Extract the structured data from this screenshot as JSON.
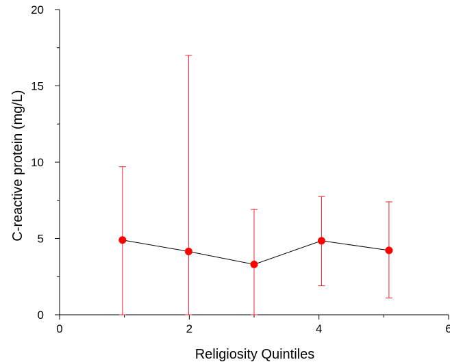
{
  "chart_data": {
    "type": "scatter",
    "title": "",
    "xlabel": "Religiosity Quintiles",
    "ylabel": "C-reactive protein (mg/L)",
    "xlim": [
      0,
      6
    ],
    "ylim": [
      0,
      20
    ],
    "x_ticks": [
      0,
      2,
      4,
      6
    ],
    "x_tick_labels": [
      "0",
      "2",
      "4",
      "6"
    ],
    "y_ticks": [
      0,
      5,
      10,
      15,
      20
    ],
    "y_tick_labels": [
      "0",
      "5",
      "10",
      "15",
      "20"
    ],
    "grid": false,
    "series": [
      {
        "x": [
          0.97,
          1.99,
          3.0,
          4.04,
          5.08
        ],
        "y": [
          4.9,
          4.15,
          3.3,
          4.85,
          4.22
        ],
        "error_upper": [
          9.7,
          17.0,
          6.9,
          7.75,
          7.4
        ],
        "error_lower": [
          0.0,
          0.0,
          0.0,
          1.9,
          1.1
        ],
        "connected": true,
        "marker_color": "#ff0000",
        "error_color": "#e8262b",
        "line_color": "#000000"
      }
    ]
  }
}
